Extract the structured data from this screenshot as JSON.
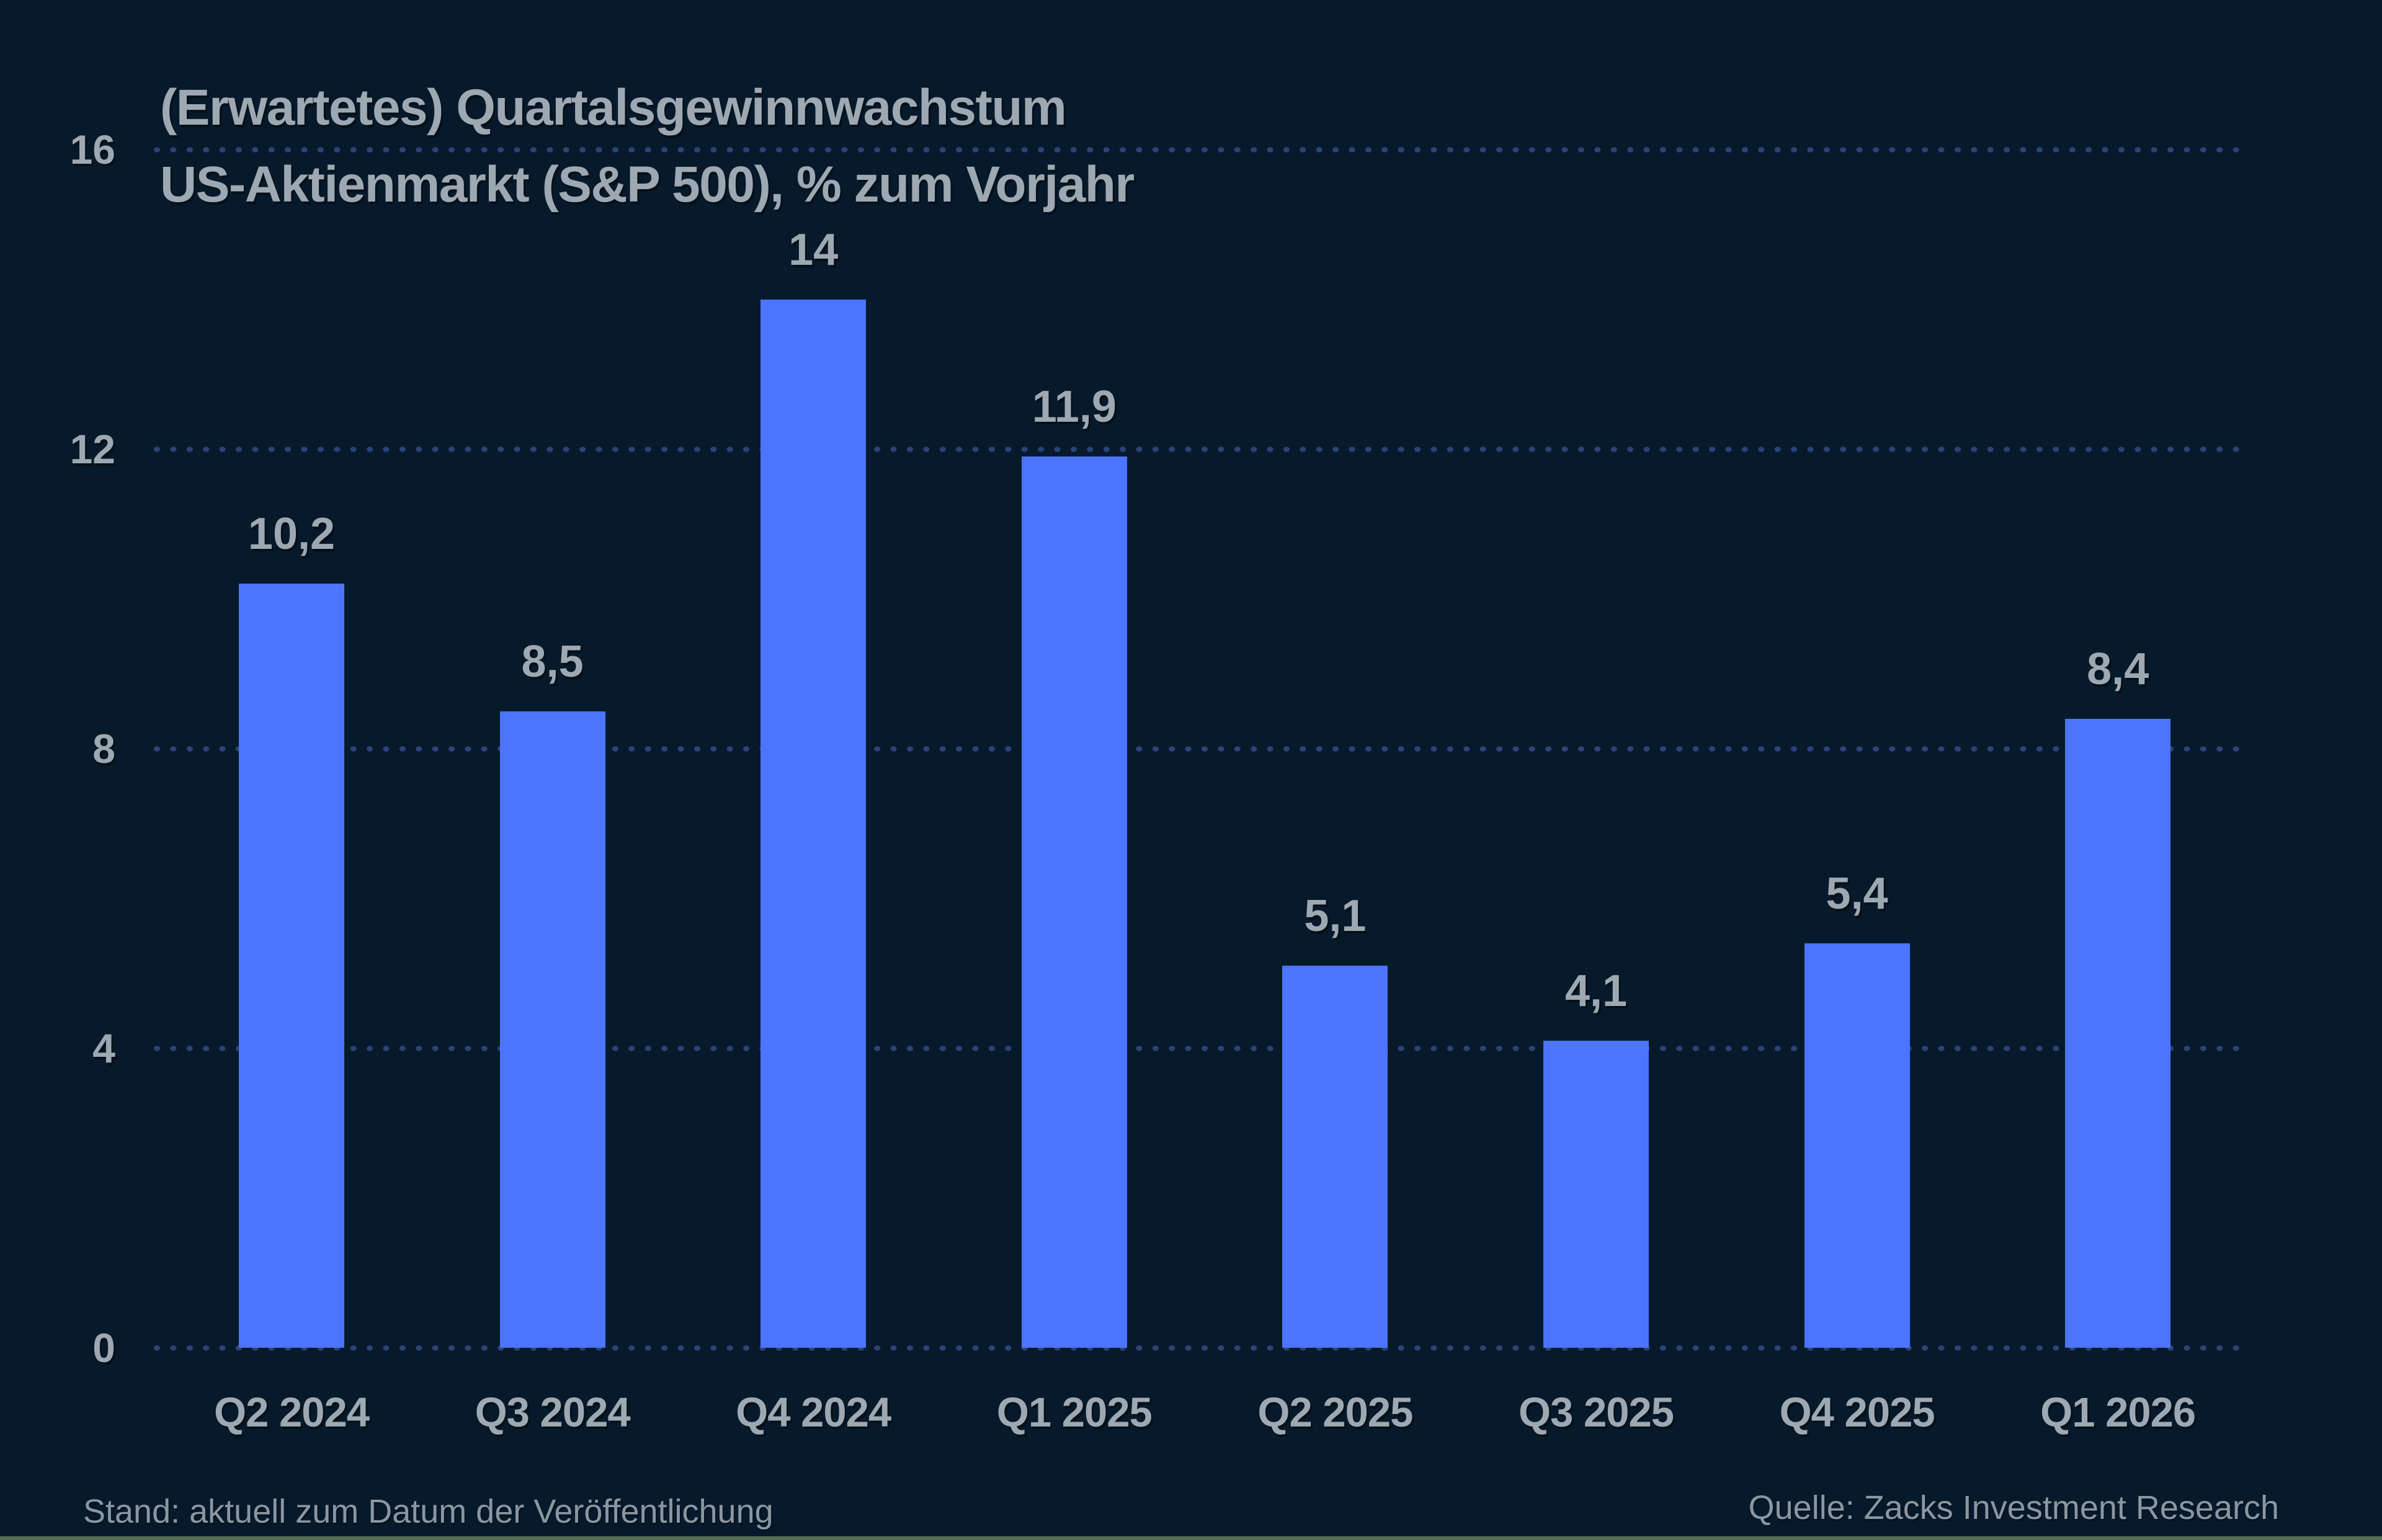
{
  "title": {
    "line1": "(Erwartetes) Quartalsgewinnwachstum",
    "line2": "US-Aktienmarkt (S&P 500), % zum Vorjahr"
  },
  "footer": {
    "left": "Stand: aktuell zum Datum der Veröffentlichung",
    "right": "Quelle: Zacks Investment Research"
  },
  "chart_data": {
    "type": "bar",
    "title": "(Erwartetes) Quartalsgewinnwachstum",
    "subtitle": "US-Aktienmarkt (S&P 500), % zum Vorjahr",
    "categories": [
      "Q2 2024",
      "Q3 2024",
      "Q4 2024",
      "Q1 2025",
      "Q2 2025",
      "Q3 2025",
      "Q4 2025",
      "Q1 2026"
    ],
    "values": [
      10.2,
      8.5,
      14,
      11.9,
      5.1,
      4.1,
      5.4,
      8.4
    ],
    "value_labels": [
      "10,2",
      "8,5",
      "14",
      "11,9",
      "5,1",
      "4,1",
      "5,4",
      "8,4"
    ],
    "yticks": [
      0,
      4,
      8,
      12,
      16
    ],
    "ytick_labels": [
      "0",
      "4",
      "8",
      "12",
      "16"
    ],
    "ylim": [
      0,
      16
    ],
    "xlabel": "",
    "ylabel": "",
    "grid": "horizontal dotted",
    "legend": "none",
    "source": "Zacks Investment Research",
    "colors": {
      "background": "#071a2b",
      "bar": "#4d74fc",
      "grid_dot": "#2b4378",
      "label_text": "#9ea8b2",
      "footer_text": "#8b96a3",
      "bottom_strip": "#566c55"
    }
  }
}
